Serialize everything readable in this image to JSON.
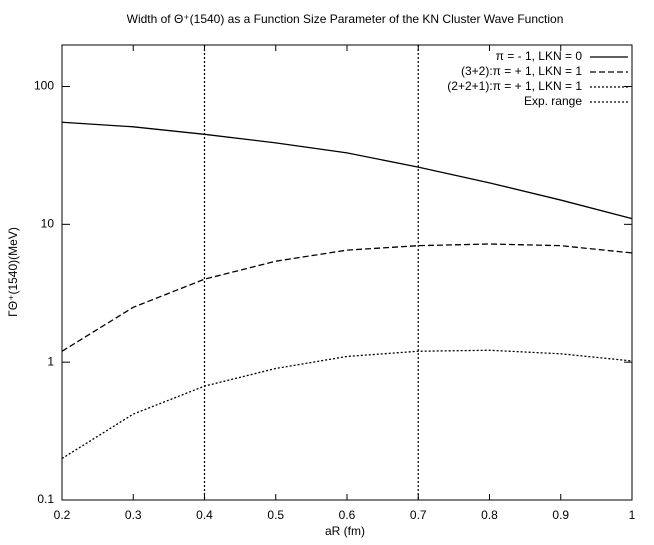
{
  "chart_data": {
    "type": "line",
    "title": "Width of Θ⁺(1540) as a Function Size Parameter of the KN Cluster Wave Function",
    "x_label": "aR (fm)",
    "y_label": "ΓΘ⁺(1540)(MeV)",
    "log_y": true,
    "legend": "top-right",
    "x": [
      0.2,
      0.3,
      0.4,
      0.5,
      0.6,
      0.7,
      0.8,
      0.9,
      1.0
    ],
    "series": [
      {
        "name": "π = - 1, LKN = 0",
        "color": "#000000",
        "dash": "solid",
        "values": [
          55,
          51,
          45,
          39,
          33,
          26,
          20,
          15,
          11
        ]
      },
      {
        "name": "(3+2):π = + 1, LKN = 1",
        "color": "#000000",
        "dash": "dashed",
        "values": [
          1.2,
          2.5,
          4.0,
          5.4,
          6.5,
          7.0,
          7.2,
          7.0,
          6.2
        ]
      },
      {
        "name": "(2+2+1):π = + 1, LKN = 1",
        "color": "#000000",
        "dash": "dotted",
        "values": [
          0.2,
          0.42,
          0.67,
          0.9,
          1.1,
          1.2,
          1.22,
          1.15,
          1.02
        ]
      }
    ],
    "exp_range": {
      "name": "Exp. range",
      "color": "#000000",
      "x": [
        0.4,
        0.7
      ]
    },
    "xlim": [
      0.2,
      1.0
    ],
    "xticks": [
      0.2,
      0.3,
      0.4,
      0.5,
      0.6,
      0.7,
      0.8,
      0.9,
      1
    ],
    "ylim": [
      0.1,
      200
    ],
    "yticks": [
      0.1,
      1,
      10,
      100
    ]
  }
}
